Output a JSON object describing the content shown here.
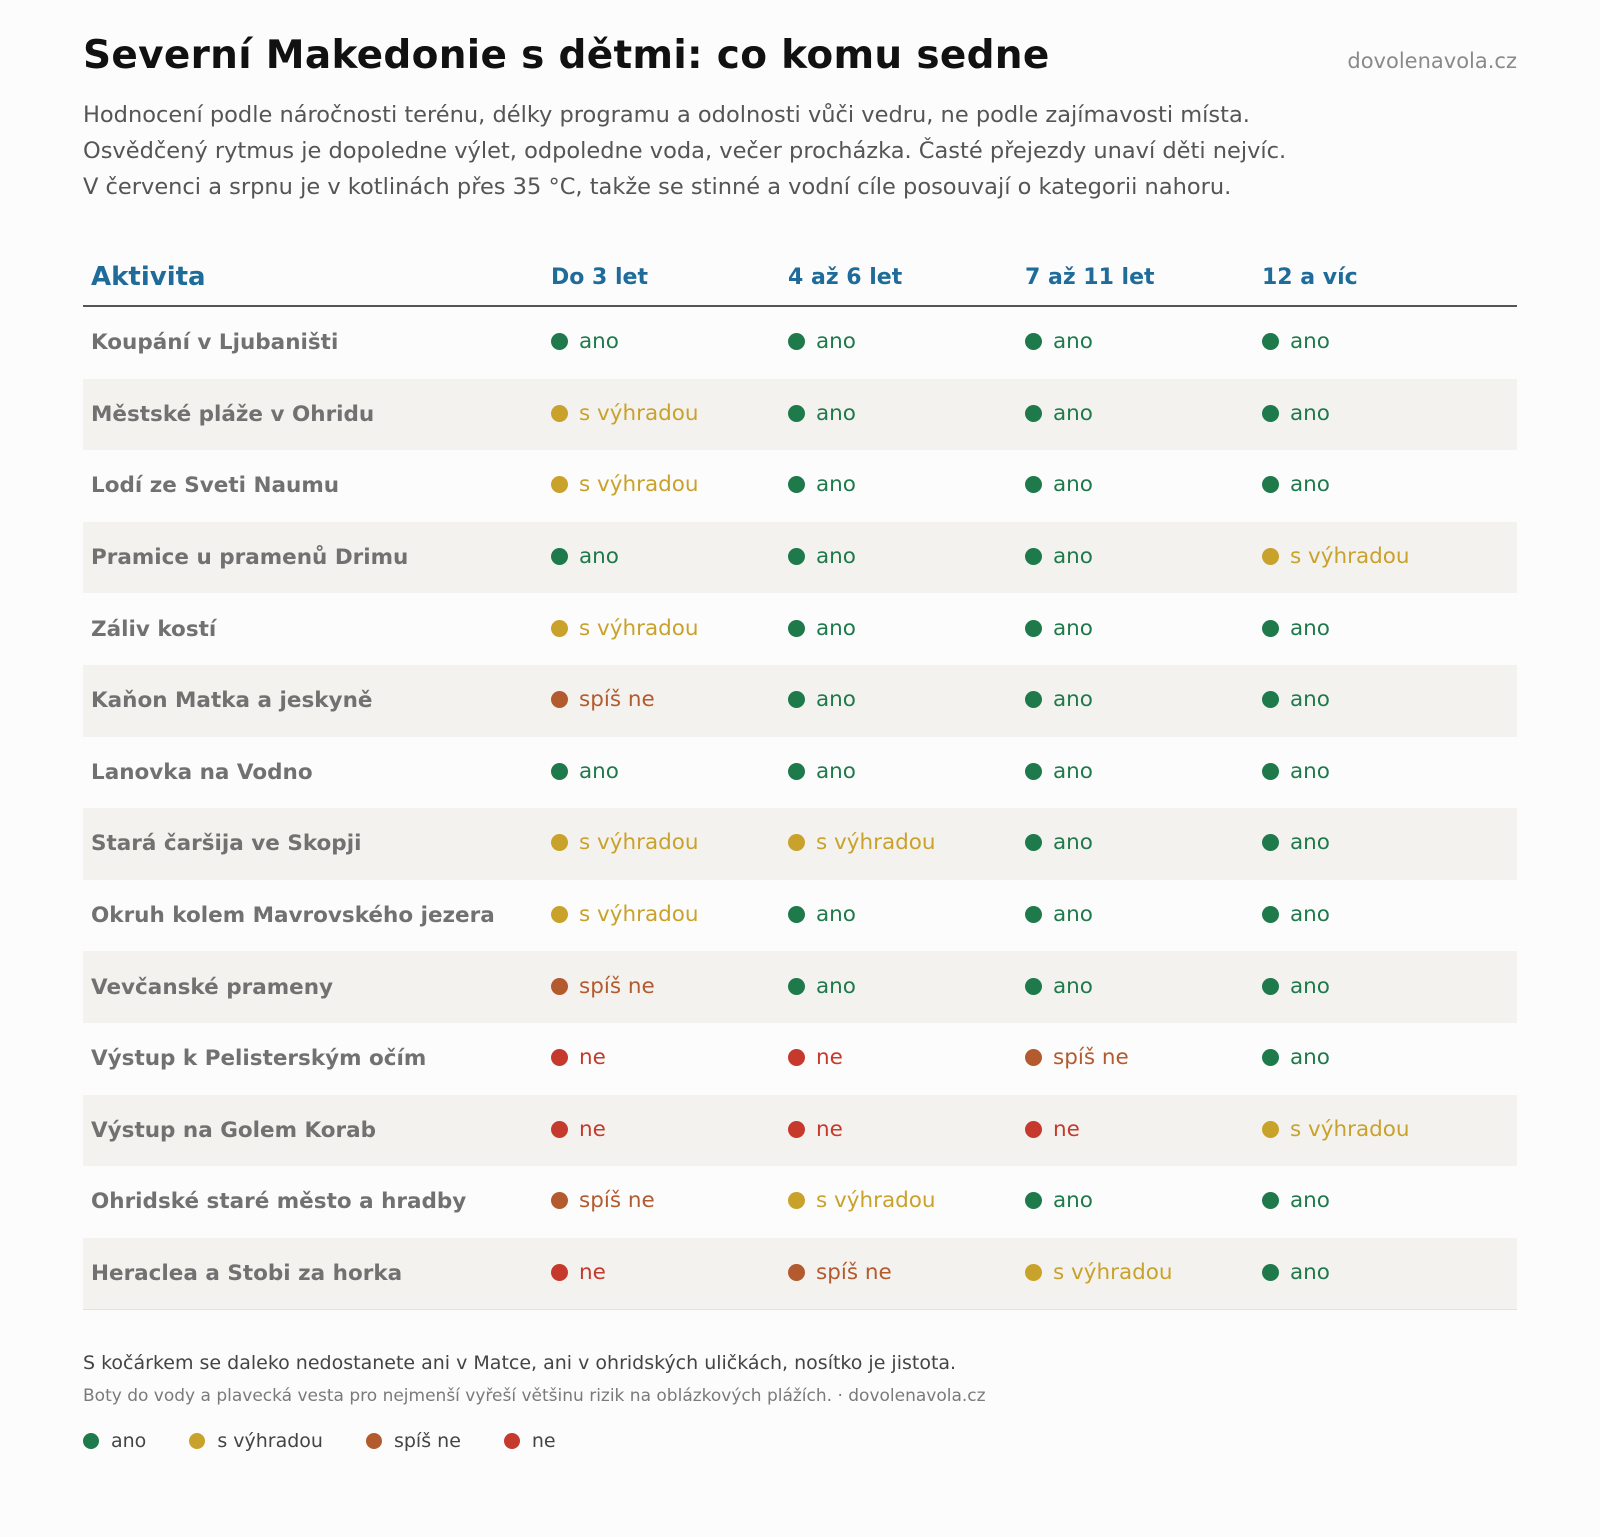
{
  "header": {
    "title": "Severní Makedonie s dětmi: co komu sedne",
    "site": "dovolenavola.cz",
    "subtitle_lines": [
      "Hodnocení podle náročnosti terénu, délky programu a odolnosti vůči vedru, ne podle zajímavosti místa.",
      "Osvědčený rytmus je dopoledne výlet, odpoledne voda, večer procházka. Časté přejezdy unaví děti nejvíc.",
      "V červenci a srpnu je v kotlinách přes 35 °C, takže se stinné a vodní cíle posouvají o kategorii nahoru."
    ]
  },
  "ratings": {
    "ano": {
      "label": "ano",
      "color": "#1e7a4a"
    },
    "s_vyhradou": {
      "label": "s výhradou",
      "color": "#c9a22c"
    },
    "spis_ne": {
      "label": "spíš ne",
      "color": "#b35a2f"
    },
    "ne": {
      "label": "ne",
      "color": "#c63a2e"
    }
  },
  "chart_data": {
    "type": "table",
    "columns": [
      "Aktivita",
      "Do 3 let",
      "4 až 6 let",
      "7 až 11 let",
      "12 a víc"
    ],
    "rows": [
      {
        "activity": "Koupání v Ljubaništi",
        "values": [
          "ano",
          "ano",
          "ano",
          "ano"
        ]
      },
      {
        "activity": "Městské pláže v Ohridu",
        "values": [
          "s výhradou",
          "ano",
          "ano",
          "ano"
        ]
      },
      {
        "activity": "Lodí ze Sveti Naumu",
        "values": [
          "s výhradou",
          "ano",
          "ano",
          "ano"
        ]
      },
      {
        "activity": "Pramice u pramenů Drimu",
        "values": [
          "ano",
          "ano",
          "ano",
          "s výhradou"
        ]
      },
      {
        "activity": "Záliv kostí",
        "values": [
          "s výhradou",
          "ano",
          "ano",
          "ano"
        ]
      },
      {
        "activity": "Kaňon Matka a jeskyně",
        "values": [
          "spíš ne",
          "ano",
          "ano",
          "ano"
        ]
      },
      {
        "activity": "Lanovka na Vodno",
        "values": [
          "ano",
          "ano",
          "ano",
          "ano"
        ]
      },
      {
        "activity": "Stará čaršija ve Skopji",
        "values": [
          "s výhradou",
          "s výhradou",
          "ano",
          "ano"
        ]
      },
      {
        "activity": "Okruh kolem Mavrovského jezera",
        "values": [
          "s výhradou",
          "ano",
          "ano",
          "ano"
        ]
      },
      {
        "activity": "Vevčanské prameny",
        "values": [
          "spíš ne",
          "ano",
          "ano",
          "ano"
        ]
      },
      {
        "activity": "Výstup k Pelisterským očím",
        "values": [
          "ne",
          "ne",
          "spíš ne",
          "ano"
        ]
      },
      {
        "activity": "Výstup na Golem Korab",
        "values": [
          "ne",
          "ne",
          "ne",
          "s výhradou"
        ]
      },
      {
        "activity": "Ohridské staré město a hradby",
        "values": [
          "spíš ne",
          "s výhradou",
          "ano",
          "ano"
        ]
      },
      {
        "activity": "Heraclea a Stobi za horka",
        "values": [
          "ne",
          "spíš ne",
          "s výhradou",
          "ano"
        ]
      }
    ]
  },
  "footer": {
    "note1": "S kočárkem se daleko nedostanete ani v Matce, ani v ohridských uličkách, nosítko je jistota.",
    "note2": "Boty do vody a plavecká vesta pro nejmenší vyřeší většinu rizik na oblázkových plážích. · dovolenavola.cz"
  },
  "legend": [
    {
      "label": "ano",
      "color": "#1e7a4a"
    },
    {
      "label": "s výhradou",
      "color": "#c9a22c"
    },
    {
      "label": "spíš ne",
      "color": "#b35a2f"
    },
    {
      "label": "ne",
      "color": "#c63a2e"
    }
  ]
}
